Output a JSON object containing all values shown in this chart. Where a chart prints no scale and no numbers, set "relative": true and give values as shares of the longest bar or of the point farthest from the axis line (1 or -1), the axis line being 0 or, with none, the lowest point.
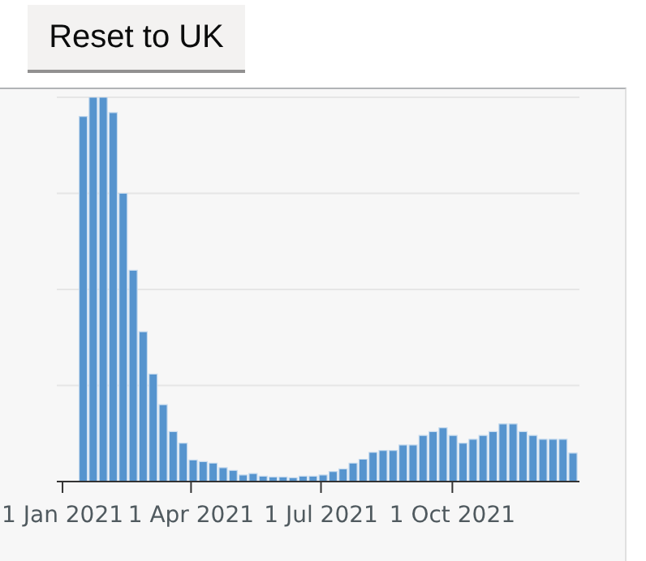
{
  "chart_data": {
    "type": "bar",
    "relative": true,
    "grid": "y",
    "color": "#5694ce",
    "annotations": [
      "Reset to UK"
    ],
    "x": [
      "2021-01-15",
      "2021-01-22",
      "2021-01-29",
      "2021-02-05",
      "2021-02-12",
      "2021-02-19",
      "2021-02-26",
      "2021-03-05",
      "2021-03-12",
      "2021-03-19",
      "2021-03-26",
      "2021-04-02",
      "2021-04-09",
      "2021-04-16",
      "2021-04-23",
      "2021-04-30",
      "2021-05-07",
      "2021-05-14",
      "2021-05-21",
      "2021-05-28",
      "2021-06-04",
      "2021-06-11",
      "2021-06-18",
      "2021-06-25",
      "2021-07-02",
      "2021-07-09",
      "2021-07-16",
      "2021-07-23",
      "2021-07-30",
      "2021-08-06",
      "2021-08-13",
      "2021-08-20",
      "2021-08-27",
      "2021-09-03",
      "2021-09-10",
      "2021-09-17",
      "2021-09-24",
      "2021-10-01",
      "2021-10-08",
      "2021-10-15",
      "2021-10-22",
      "2021-10-29",
      "2021-11-05",
      "2021-11-12",
      "2021-11-19",
      "2021-11-26",
      "2021-12-03",
      "2021-12-10",
      "2021-12-17",
      "2021-12-24"
    ],
    "values": [
      0.95,
      1,
      1,
      0.96,
      0.75,
      0.55,
      0.39,
      0.28,
      0.2,
      0.13,
      0.1,
      0.056,
      0.052,
      0.048,
      0.036,
      0.029,
      0.017,
      0.021,
      0.014,
      0.012,
      0.012,
      0.01,
      0.014,
      0.014,
      0.017,
      0.026,
      0.033,
      0.048,
      0.058,
      0.076,
      0.081,
      0.081,
      0.095,
      0.095,
      0.12,
      0.13,
      0.14,
      0.12,
      0.1,
      0.11,
      0.12,
      0.13,
      0.15,
      0.15,
      0.13,
      0.12,
      0.11,
      0.11,
      0.11,
      0.074
    ],
    "xlim": [
      "2020-12-28",
      "2021-12-29"
    ],
    "xticks": [
      {
        "value": "2021-01-01",
        "label": "1 Jan 2021"
      },
      {
        "value": "2021-04-01",
        "label": "1 Apr 2021"
      },
      {
        "value": "2021-07-01",
        "label": "1 Jul 2021"
      },
      {
        "value": "2021-10-01",
        "label": "1 Oct 2021"
      }
    ]
  }
}
